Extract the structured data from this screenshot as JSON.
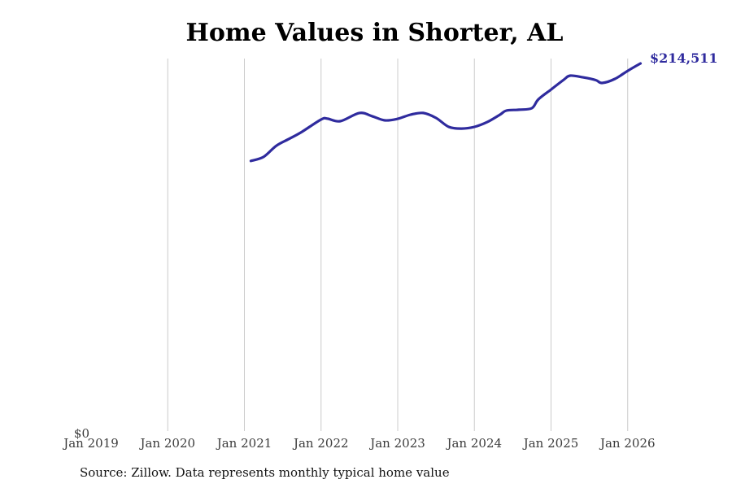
{
  "title": "Home Values in Shorter, AL",
  "end_label": "$214,511",
  "y_zero_label": "$0",
  "source_note": "Source: Zillow. Data represents monthly typical home value",
  "colors": {
    "line": "#2f2b9e",
    "end_label_text": "#2f2b9e",
    "gridline": "#cccccc",
    "axis_text": "#3c3c3c",
    "title_text": "#000000",
    "source_text": "#141414",
    "background": "#ffffff"
  },
  "chart_data": {
    "type": "line",
    "title": "Home Values in Shorter, AL",
    "xlabel": "",
    "ylabel": "",
    "ylim": [
      0,
      217000
    ],
    "grid": "vertical-only",
    "legend": "none",
    "x_tick_labels": [
      "Jan 2019",
      "Jan 2020",
      "Jan 2021",
      "Jan 2022",
      "Jan 2023",
      "Jan 2024",
      "Jan 2025",
      "Jan 2026"
    ],
    "y_tick_labels": [
      "$0"
    ],
    "end_annotation": "$214,511",
    "series": [
      {
        "name": "Typical home value",
        "points": [
          {
            "date": "2021-02",
            "value": 157600
          },
          {
            "date": "2021-04",
            "value": 160000
          },
          {
            "date": "2021-06",
            "value": 166500
          },
          {
            "date": "2021-08",
            "value": 170500
          },
          {
            "date": "2021-10",
            "value": 174600
          },
          {
            "date": "2022-01",
            "value": 181800
          },
          {
            "date": "2022-02",
            "value": 182300
          },
          {
            "date": "2022-04",
            "value": 180800
          },
          {
            "date": "2022-07",
            "value": 185600
          },
          {
            "date": "2022-09",
            "value": 183700
          },
          {
            "date": "2022-11",
            "value": 181300
          },
          {
            "date": "2023-01",
            "value": 182200
          },
          {
            "date": "2023-03",
            "value": 184600
          },
          {
            "date": "2023-05",
            "value": 185600
          },
          {
            "date": "2023-07",
            "value": 182700
          },
          {
            "date": "2023-09",
            "value": 177500
          },
          {
            "date": "2023-11",
            "value": 176500
          },
          {
            "date": "2024-01",
            "value": 177500
          },
          {
            "date": "2024-03",
            "value": 180300
          },
          {
            "date": "2024-05",
            "value": 184600
          },
          {
            "date": "2024-06",
            "value": 187000
          },
          {
            "date": "2024-08",
            "value": 187500
          },
          {
            "date": "2024-10",
            "value": 188400
          },
          {
            "date": "2024-11",
            "value": 193500
          },
          {
            "date": "2025-01",
            "value": 199300
          },
          {
            "date": "2025-03",
            "value": 205000
          },
          {
            "date": "2025-04",
            "value": 207400
          },
          {
            "date": "2025-06",
            "value": 206400
          },
          {
            "date": "2025-08",
            "value": 204800
          },
          {
            "date": "2025-09",
            "value": 203100
          },
          {
            "date": "2025-11",
            "value": 205500
          },
          {
            "date": "2026-01",
            "value": 210200
          },
          {
            "date": "2026-03",
            "value": 214511
          }
        ]
      }
    ]
  }
}
